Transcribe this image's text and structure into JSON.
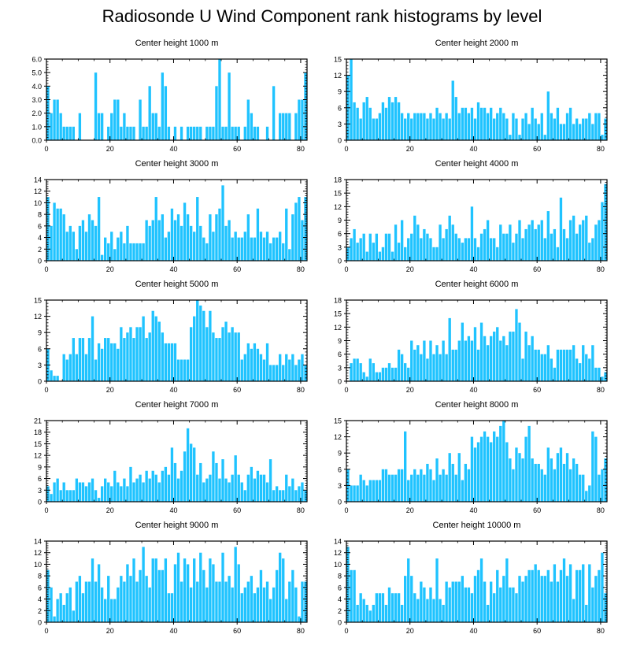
{
  "title": "Radiosonde U Wind Component rank histograms by level",
  "colors": {
    "bar": "#1fc3ff",
    "axis": "#000000",
    "background": "#ffffff"
  },
  "chart_data": [
    {
      "type": "bar",
      "title": "Center height 1000 m",
      "ylim": [
        0,
        6
      ],
      "yticks": [
        "0.0",
        "1.0",
        "2.0",
        "3.0",
        "4.0",
        "5.0",
        "6.0"
      ],
      "xlim": [
        0,
        82
      ],
      "xticks": [
        "0",
        "20",
        "40",
        "60",
        "80"
      ],
      "values": [
        4,
        2,
        3,
        3,
        2,
        1,
        1,
        1,
        1,
        0,
        2,
        0,
        0,
        0,
        0,
        5,
        2,
        2,
        0,
        1,
        2,
        3,
        3,
        1,
        2,
        1,
        1,
        1,
        0,
        3,
        1,
        1,
        4,
        2,
        2,
        1,
        5,
        4,
        1,
        0,
        1,
        0,
        1,
        0,
        1,
        1,
        1,
        1,
        1,
        0,
        1,
        1,
        1,
        4,
        6,
        1,
        1,
        5,
        1,
        1,
        1,
        0,
        1,
        3,
        2,
        1,
        1,
        0,
        0,
        1,
        0,
        4,
        0,
        2,
        2,
        2,
        2,
        0,
        2,
        3,
        3,
        5
      ]
    },
    {
      "type": "bar",
      "title": "Center height 2000 m",
      "ylim": [
        0,
        15
      ],
      "yticks": [
        "0",
        "3",
        "6",
        "9",
        "12",
        "15"
      ],
      "xlim": [
        0,
        82
      ],
      "xticks": [
        "0",
        "20",
        "40",
        "60",
        "80"
      ],
      "values": [
        12,
        15,
        7,
        6,
        4,
        7,
        8,
        6,
        4,
        4,
        5,
        7,
        6,
        8,
        7,
        8,
        7,
        5,
        4,
        5,
        4,
        5,
        5,
        5,
        5,
        4,
        5,
        4,
        6,
        5,
        4,
        5,
        4,
        11,
        8,
        5,
        6,
        6,
        5,
        6,
        4,
        7,
        6,
        6,
        5,
        6,
        4,
        5,
        6,
        5,
        4,
        1,
        5,
        4,
        1,
        4,
        5,
        3,
        6,
        4,
        3,
        5,
        1,
        9,
        5,
        4,
        6,
        3,
        3,
        5,
        6,
        3,
        4,
        3,
        4,
        4,
        5,
        3,
        5,
        5,
        1,
        4
      ]
    },
    {
      "type": "bar",
      "title": "Center height 3000 m",
      "ylim": [
        0,
        14
      ],
      "yticks": [
        "0",
        "2",
        "4",
        "6",
        "8",
        "10",
        "12",
        "14"
      ],
      "xlim": [
        0,
        82
      ],
      "xticks": [
        "0",
        "20",
        "40",
        "60",
        "80"
      ],
      "values": [
        11,
        6,
        10,
        9,
        9,
        8,
        5,
        6,
        5,
        2,
        6,
        7,
        5,
        8,
        7,
        6,
        11,
        1,
        4,
        3,
        5,
        2,
        4,
        5,
        3,
        6,
        3,
        3,
        3,
        3,
        3,
        7,
        6,
        7,
        11,
        7,
        8,
        4,
        5,
        9,
        7,
        8,
        6,
        10,
        8,
        6,
        5,
        11,
        6,
        4,
        3,
        8,
        5,
        8,
        9,
        13,
        6,
        7,
        4,
        5,
        4,
        4,
        5,
        8,
        4,
        4,
        9,
        5,
        4,
        5,
        3,
        4,
        4,
        5,
        3,
        9,
        2,
        8,
        10,
        11,
        7,
        11
      ]
    },
    {
      "type": "bar",
      "title": "Center height 4000 m",
      "ylim": [
        0,
        18
      ],
      "yticks": [
        "0",
        "3",
        "6",
        "9",
        "12",
        "15",
        "18"
      ],
      "xlim": [
        0,
        82
      ],
      "xticks": [
        "0",
        "20",
        "40",
        "60",
        "80"
      ],
      "values": [
        3,
        5,
        7,
        4,
        5,
        6,
        2,
        6,
        4,
        6,
        2,
        3,
        6,
        6,
        2,
        8,
        4,
        9,
        3,
        5,
        6,
        10,
        8,
        5,
        7,
        6,
        5,
        3,
        3,
        8,
        5,
        7,
        10,
        8,
        6,
        5,
        4,
        5,
        5,
        12,
        5,
        3,
        6,
        7,
        9,
        5,
        5,
        3,
        8,
        6,
        6,
        8,
        4,
        6,
        9,
        5,
        7,
        8,
        9,
        7,
        8,
        9,
        5,
        11,
        6,
        7,
        3,
        14,
        7,
        5,
        9,
        10,
        6,
        8,
        9,
        10,
        4,
        5,
        8,
        9,
        13,
        17
      ]
    },
    {
      "type": "bar",
      "title": "Center height 5000 m",
      "ylim": [
        0,
        15
      ],
      "yticks": [
        "0",
        "3",
        "6",
        "9",
        "12",
        "15"
      ],
      "xlim": [
        0,
        82
      ],
      "xticks": [
        "0",
        "20",
        "40",
        "60",
        "80"
      ],
      "values": [
        6,
        2,
        1,
        1,
        0,
        5,
        4,
        5,
        8,
        5,
        8,
        8,
        5,
        8,
        12,
        4,
        7,
        6,
        8,
        8,
        7,
        7,
        6,
        10,
        8,
        9,
        10,
        8,
        10,
        10,
        12,
        8,
        9,
        13,
        12,
        11,
        9,
        7,
        7,
        7,
        7,
        4,
        4,
        4,
        4,
        10,
        12,
        15,
        14,
        13,
        10,
        13,
        9,
        8,
        8,
        10,
        11,
        9,
        10,
        9,
        9,
        4,
        5,
        7,
        6,
        7,
        6,
        5,
        4,
        7,
        3,
        3,
        3,
        5,
        3,
        5,
        4,
        5,
        3,
        4,
        5,
        3
      ]
    },
    {
      "type": "bar",
      "title": "Center height 6000 m",
      "ylim": [
        0,
        18
      ],
      "yticks": [
        "0",
        "3",
        "6",
        "9",
        "12",
        "15",
        "18"
      ],
      "xlim": [
        0,
        82
      ],
      "xticks": [
        "0",
        "20",
        "40",
        "60",
        "80"
      ],
      "values": [
        0,
        4,
        5,
        5,
        4,
        2,
        1,
        5,
        4,
        2,
        2,
        3,
        3,
        4,
        3,
        3,
        7,
        6,
        4,
        3,
        9,
        7,
        8,
        6,
        9,
        5,
        9,
        6,
        8,
        6,
        9,
        6,
        14,
        7,
        7,
        9,
        13,
        9,
        10,
        9,
        12,
        7,
        13,
        10,
        8,
        10,
        11,
        12,
        9,
        10,
        8,
        11,
        11,
        16,
        13,
        5,
        11,
        8,
        10,
        7,
        7,
        6,
        6,
        8,
        5,
        3,
        7,
        7,
        7,
        7,
        7,
        8,
        5,
        4,
        8,
        6,
        5,
        8,
        3,
        3,
        1,
        2
      ]
    },
    {
      "type": "bar",
      "title": "Center height 7000 m",
      "ylim": [
        0,
        21
      ],
      "yticks": [
        "0",
        "3",
        "6",
        "9",
        "12",
        "15",
        "18",
        "21"
      ],
      "xlim": [
        0,
        82
      ],
      "xticks": [
        "0",
        "20",
        "40",
        "60",
        "80"
      ],
      "values": [
        4,
        2,
        5,
        6,
        3,
        5,
        3,
        3,
        3,
        6,
        5,
        5,
        4,
        5,
        6,
        3,
        1,
        4,
        6,
        5,
        4,
        8,
        5,
        4,
        6,
        4,
        9,
        5,
        6,
        7,
        5,
        8,
        6,
        8,
        7,
        5,
        8,
        9,
        7,
        14,
        10,
        6,
        8,
        13,
        19,
        15,
        14,
        7,
        10,
        5,
        6,
        7,
        13,
        10,
        6,
        11,
        6,
        5,
        7,
        12,
        7,
        5,
        3,
        7,
        9,
        6,
        8,
        7,
        7,
        5,
        11,
        3,
        4,
        3,
        3,
        7,
        4,
        6,
        3,
        4,
        5,
        3
      ]
    },
    {
      "type": "bar",
      "title": "Center height 8000 m",
      "ylim": [
        0,
        15
      ],
      "yticks": [
        "0",
        "3",
        "6",
        "9",
        "12",
        "15"
      ],
      "xlim": [
        0,
        82
      ],
      "xticks": [
        "0",
        "20",
        "40",
        "60",
        "80"
      ],
      "values": [
        6,
        3,
        3,
        3,
        5,
        4,
        3,
        4,
        4,
        4,
        4,
        6,
        6,
        5,
        5,
        5,
        6,
        6,
        13,
        4,
        5,
        6,
        5,
        6,
        5,
        7,
        6,
        4,
        8,
        5,
        6,
        5,
        9,
        7,
        5,
        9,
        4,
        7,
        6,
        12,
        10,
        11,
        12,
        13,
        12,
        11,
        13,
        12,
        14,
        15,
        11,
        8,
        6,
        10,
        9,
        8,
        12,
        14,
        8,
        7,
        7,
        6,
        5,
        10,
        8,
        6,
        9,
        10,
        7,
        9,
        6,
        8,
        7,
        5,
        5,
        2,
        3,
        13,
        12,
        5,
        6,
        8
      ]
    },
    {
      "type": "bar",
      "title": "Center height 9000 m",
      "ylim": [
        0,
        14
      ],
      "yticks": [
        "0",
        "2",
        "4",
        "6",
        "8",
        "10",
        "12",
        "14"
      ],
      "xlim": [
        0,
        82
      ],
      "xticks": [
        "0",
        "20",
        "40",
        "60",
        "80"
      ],
      "values": [
        9,
        6,
        1,
        4,
        5,
        3,
        5,
        6,
        2,
        7,
        8,
        5,
        7,
        7,
        11,
        7,
        10,
        6,
        4,
        8,
        4,
        4,
        6,
        8,
        7,
        10,
        8,
        11,
        7,
        9,
        13,
        8,
        6,
        11,
        11,
        9,
        9,
        11,
        5,
        5,
        10,
        12,
        7,
        11,
        10,
        6,
        11,
        7,
        12,
        9,
        6,
        11,
        10,
        7,
        7,
        12,
        7,
        8,
        6,
        13,
        10,
        5,
        6,
        7,
        8,
        5,
        6,
        9,
        6,
        7,
        4,
        6,
        9,
        12,
        11,
        4,
        7,
        9,
        6,
        1,
        7,
        7
      ]
    },
    {
      "type": "bar",
      "title": "Center height 10000 m",
      "ylim": [
        0,
        14
      ],
      "yticks": [
        "0",
        "2",
        "4",
        "6",
        "8",
        "10",
        "12",
        "14"
      ],
      "xlim": [
        0,
        82
      ],
      "xticks": [
        "0",
        "20",
        "40",
        "60",
        "80"
      ],
      "values": [
        13,
        9,
        9,
        3,
        5,
        4,
        3,
        2,
        3,
        5,
        5,
        5,
        3,
        6,
        5,
        5,
        5,
        3,
        8,
        11,
        8,
        5,
        4,
        7,
        6,
        4,
        6,
        4,
        11,
        4,
        3,
        7,
        6,
        7,
        7,
        7,
        8,
        6,
        6,
        5,
        8,
        9,
        11,
        7,
        3,
        7,
        5,
        9,
        6,
        8,
        11,
        6,
        6,
        5,
        8,
        7,
        8,
        9,
        9,
        10,
        9,
        8,
        8,
        9,
        7,
        10,
        7,
        9,
        11,
        8,
        10,
        4,
        9,
        9,
        10,
        3,
        10,
        6,
        8,
        9,
        12,
        5
      ]
    }
  ]
}
